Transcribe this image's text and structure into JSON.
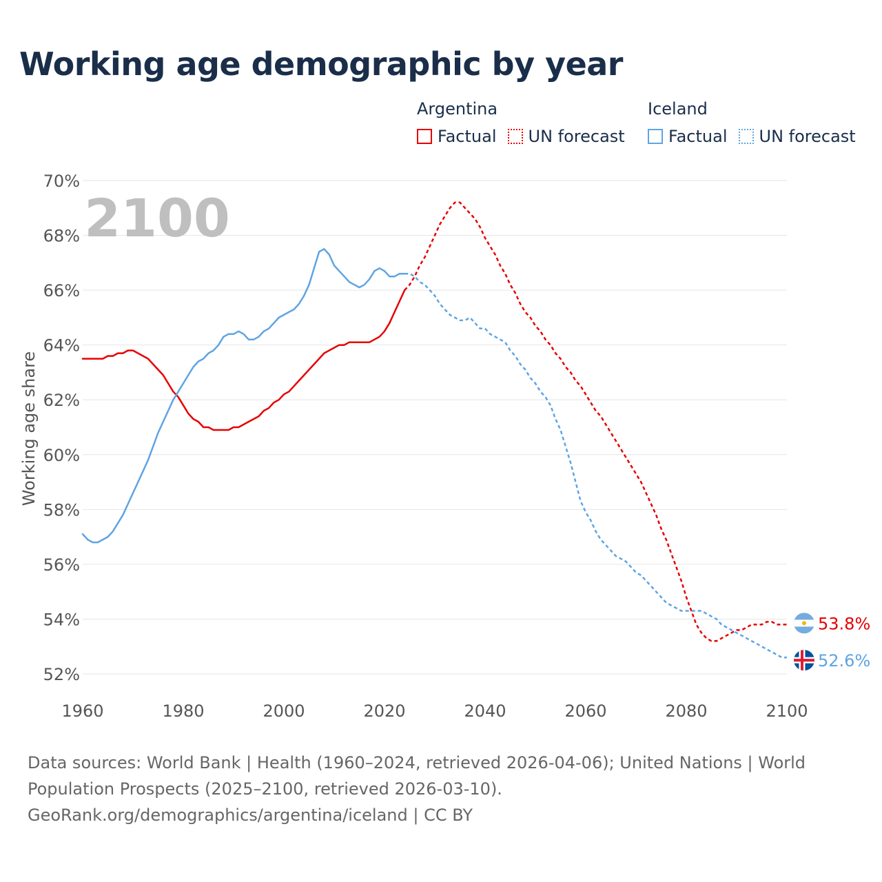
{
  "title": "Working age demographic by year",
  "legend": [
    {
      "country": "Argentina",
      "factual_label": "Factual",
      "forecast_label": "UN forecast",
      "color": "#e60000"
    },
    {
      "country": "Iceland",
      "factual_label": "Factual",
      "forecast_label": "UN forecast",
      "color": "#5ea4e2"
    }
  ],
  "footer": {
    "line1": "Data sources: World Bank | Health (1960–2024, retrieved 2026-04-06); United Nations | World",
    "line2": "Population Prospects (2025–2100, retrieved 2026-03-10).",
    "line3": "GeoRank.org/demographics/argentina/iceland | CC BY"
  },
  "colors": {
    "title": "#1a2e4a",
    "axis_text": "#555555",
    "grid": "#e6e6e6",
    "year_watermark": "#bfbfbf",
    "argentina": "#e60000",
    "iceland": "#5ea4e2"
  },
  "chart_data": {
    "type": "line",
    "title": "Working age demographic by year",
    "ylabel": "Working age share",
    "xlabel": "",
    "year_label": "2100",
    "xlim": [
      1960,
      2100
    ],
    "ylim": [
      52,
      70
    ],
    "x_ticks": [
      "1960",
      "1980",
      "2000",
      "2020",
      "2040",
      "2060",
      "2080",
      "2100"
    ],
    "y_ticks": [
      "52%",
      "54%",
      "56%",
      "58%",
      "60%",
      "62%",
      "64%",
      "66%",
      "68%",
      "70%"
    ],
    "factual_end_year": 2024,
    "series": [
      {
        "name": "Argentina",
        "flag": "argentina-flag",
        "end_label": "53.8%",
        "points": [
          [
            1960,
            63.5
          ],
          [
            1962,
            63.5
          ],
          [
            1964,
            63.5
          ],
          [
            1965,
            63.6
          ],
          [
            1966,
            63.6
          ],
          [
            1967,
            63.7
          ],
          [
            1968,
            63.7
          ],
          [
            1969,
            63.8
          ],
          [
            1970,
            63.8
          ],
          [
            1972,
            63.6
          ],
          [
            1973,
            63.5
          ],
          [
            1975,
            63.1
          ],
          [
            1976,
            62.9
          ],
          [
            1977,
            62.6
          ],
          [
            1978,
            62.3
          ],
          [
            1979,
            62.1
          ],
          [
            1980,
            61.8
          ],
          [
            1981,
            61.5
          ],
          [
            1982,
            61.3
          ],
          [
            1983,
            61.2
          ],
          [
            1984,
            61.0
          ],
          [
            1985,
            61.0
          ],
          [
            1986,
            60.9
          ],
          [
            1988,
            60.9
          ],
          [
            1989,
            60.9
          ],
          [
            1990,
            61.0
          ],
          [
            1991,
            61.0
          ],
          [
            1993,
            61.2
          ],
          [
            1995,
            61.4
          ],
          [
            1996,
            61.6
          ],
          [
            1997,
            61.7
          ],
          [
            1998,
            61.9
          ],
          [
            1999,
            62.0
          ],
          [
            2000,
            62.2
          ],
          [
            2001,
            62.3
          ],
          [
            2003,
            62.7
          ],
          [
            2005,
            63.1
          ],
          [
            2007,
            63.5
          ],
          [
            2008,
            63.7
          ],
          [
            2010,
            63.9
          ],
          [
            2011,
            64.0
          ],
          [
            2012,
            64.0
          ],
          [
            2013,
            64.1
          ],
          [
            2015,
            64.1
          ],
          [
            2017,
            64.1
          ],
          [
            2018,
            64.2
          ],
          [
            2019,
            64.3
          ],
          [
            2020,
            64.5
          ],
          [
            2021,
            64.8
          ],
          [
            2022,
            65.2
          ],
          [
            2023,
            65.6
          ],
          [
            2024,
            66.0
          ],
          [
            2025,
            66.2
          ],
          [
            2026,
            66.5
          ],
          [
            2027,
            66.9
          ],
          [
            2028,
            67.2
          ],
          [
            2029,
            67.6
          ],
          [
            2030,
            68.0
          ],
          [
            2031,
            68.4
          ],
          [
            2032,
            68.7
          ],
          [
            2033,
            69.0
          ],
          [
            2034,
            69.2
          ],
          [
            2035,
            69.2
          ],
          [
            2036,
            69.0
          ],
          [
            2037,
            68.8
          ],
          [
            2038,
            68.6
          ],
          [
            2039,
            68.3
          ],
          [
            2040,
            67.9
          ],
          [
            2041,
            67.6
          ],
          [
            2042,
            67.3
          ],
          [
            2043,
            66.9
          ],
          [
            2044,
            66.6
          ],
          [
            2045,
            66.2
          ],
          [
            2046,
            65.9
          ],
          [
            2047,
            65.5
          ],
          [
            2048,
            65.2
          ],
          [
            2049,
            65.0
          ],
          [
            2050,
            64.7
          ],
          [
            2051,
            64.5
          ],
          [
            2052,
            64.2
          ],
          [
            2053,
            64.0
          ],
          [
            2054,
            63.7
          ],
          [
            2055,
            63.5
          ],
          [
            2056,
            63.2
          ],
          [
            2057,
            63.0
          ],
          [
            2058,
            62.7
          ],
          [
            2059,
            62.5
          ],
          [
            2060,
            62.2
          ],
          [
            2061,
            61.9
          ],
          [
            2062,
            61.6
          ],
          [
            2063,
            61.4
          ],
          [
            2064,
            61.1
          ],
          [
            2065,
            60.8
          ],
          [
            2066,
            60.5
          ],
          [
            2067,
            60.2
          ],
          [
            2068,
            59.9
          ],
          [
            2069,
            59.6
          ],
          [
            2070,
            59.3
          ],
          [
            2071,
            59.0
          ],
          [
            2072,
            58.6
          ],
          [
            2073,
            58.2
          ],
          [
            2074,
            57.8
          ],
          [
            2075,
            57.3
          ],
          [
            2076,
            56.9
          ],
          [
            2077,
            56.4
          ],
          [
            2078,
            55.9
          ],
          [
            2079,
            55.4
          ],
          [
            2080,
            54.8
          ],
          [
            2081,
            54.3
          ],
          [
            2082,
            53.8
          ],
          [
            2083,
            53.5
          ],
          [
            2084,
            53.3
          ],
          [
            2085,
            53.2
          ],
          [
            2086,
            53.2
          ],
          [
            2087,
            53.3
          ],
          [
            2088,
            53.4
          ],
          [
            2089,
            53.5
          ],
          [
            2090,
            53.6
          ],
          [
            2091,
            53.6
          ],
          [
            2092,
            53.7
          ],
          [
            2093,
            53.8
          ],
          [
            2094,
            53.8
          ],
          [
            2095,
            53.8
          ],
          [
            2096,
            53.9
          ],
          [
            2097,
            53.9
          ],
          [
            2098,
            53.8
          ],
          [
            2099,
            53.8
          ],
          [
            2100,
            53.8
          ]
        ]
      },
      {
        "name": "Iceland",
        "flag": "iceland-flag",
        "end_label": "52.6%",
        "points": [
          [
            1960,
            57.1
          ],
          [
            1961,
            56.9
          ],
          [
            1962,
            56.8
          ],
          [
            1963,
            56.8
          ],
          [
            1964,
            56.9
          ],
          [
            1965,
            57.0
          ],
          [
            1966,
            57.2
          ],
          [
            1967,
            57.5
          ],
          [
            1968,
            57.8
          ],
          [
            1969,
            58.2
          ],
          [
            1970,
            58.6
          ],
          [
            1971,
            59.0
          ],
          [
            1972,
            59.4
          ],
          [
            1973,
            59.8
          ],
          [
            1974,
            60.3
          ],
          [
            1975,
            60.8
          ],
          [
            1976,
            61.2
          ],
          [
            1977,
            61.6
          ],
          [
            1978,
            62.0
          ],
          [
            1979,
            62.3
          ],
          [
            1980,
            62.6
          ],
          [
            1981,
            62.9
          ],
          [
            1982,
            63.2
          ],
          [
            1983,
            63.4
          ],
          [
            1984,
            63.5
          ],
          [
            1985,
            63.7
          ],
          [
            1986,
            63.8
          ],
          [
            1987,
            64.0
          ],
          [
            1988,
            64.3
          ],
          [
            1989,
            64.4
          ],
          [
            1990,
            64.4
          ],
          [
            1991,
            64.5
          ],
          [
            1992,
            64.4
          ],
          [
            1993,
            64.2
          ],
          [
            1994,
            64.2
          ],
          [
            1995,
            64.3
          ],
          [
            1996,
            64.5
          ],
          [
            1997,
            64.6
          ],
          [
            1998,
            64.8
          ],
          [
            1999,
            65.0
          ],
          [
            2000,
            65.1
          ],
          [
            2001,
            65.2
          ],
          [
            2002,
            65.3
          ],
          [
            2003,
            65.5
          ],
          [
            2004,
            65.8
          ],
          [
            2005,
            66.2
          ],
          [
            2006,
            66.8
          ],
          [
            2007,
            67.4
          ],
          [
            2008,
            67.5
          ],
          [
            2009,
            67.3
          ],
          [
            2010,
            66.9
          ],
          [
            2011,
            66.7
          ],
          [
            2012,
            66.5
          ],
          [
            2013,
            66.3
          ],
          [
            2014,
            66.2
          ],
          [
            2015,
            66.1
          ],
          [
            2016,
            66.2
          ],
          [
            2017,
            66.4
          ],
          [
            2018,
            66.7
          ],
          [
            2019,
            66.8
          ],
          [
            2020,
            66.7
          ],
          [
            2021,
            66.5
          ],
          [
            2022,
            66.5
          ],
          [
            2023,
            66.6
          ],
          [
            2024,
            66.6
          ],
          [
            2025,
            66.6
          ],
          [
            2026,
            66.5
          ],
          [
            2027,
            66.3
          ],
          [
            2028,
            66.2
          ],
          [
            2029,
            66.0
          ],
          [
            2030,
            65.8
          ],
          [
            2031,
            65.5
          ],
          [
            2032,
            65.3
          ],
          [
            2033,
            65.1
          ],
          [
            2034,
            65.0
          ],
          [
            2035,
            64.9
          ],
          [
            2036,
            64.9
          ],
          [
            2037,
            65.0
          ],
          [
            2038,
            64.8
          ],
          [
            2039,
            64.6
          ],
          [
            2040,
            64.6
          ],
          [
            2041,
            64.4
          ],
          [
            2042,
            64.3
          ],
          [
            2043,
            64.2
          ],
          [
            2044,
            64.1
          ],
          [
            2045,
            63.8
          ],
          [
            2046,
            63.6
          ],
          [
            2047,
            63.3
          ],
          [
            2048,
            63.1
          ],
          [
            2049,
            62.8
          ],
          [
            2050,
            62.6
          ],
          [
            2051,
            62.3
          ],
          [
            2052,
            62.1
          ],
          [
            2053,
            61.8
          ],
          [
            2054,
            61.3
          ],
          [
            2055,
            60.9
          ],
          [
            2056,
            60.3
          ],
          [
            2057,
            59.7
          ],
          [
            2058,
            59.0
          ],
          [
            2059,
            58.3
          ],
          [
            2060,
            57.9
          ],
          [
            2061,
            57.6
          ],
          [
            2062,
            57.2
          ],
          [
            2063,
            56.9
          ],
          [
            2064,
            56.7
          ],
          [
            2065,
            56.5
          ],
          [
            2066,
            56.3
          ],
          [
            2067,
            56.2
          ],
          [
            2068,
            56.1
          ],
          [
            2069,
            55.9
          ],
          [
            2070,
            55.7
          ],
          [
            2071,
            55.6
          ],
          [
            2072,
            55.4
          ],
          [
            2073,
            55.2
          ],
          [
            2074,
            55.0
          ],
          [
            2075,
            54.8
          ],
          [
            2076,
            54.6
          ],
          [
            2077,
            54.5
          ],
          [
            2078,
            54.4
          ],
          [
            2079,
            54.3
          ],
          [
            2080,
            54.3
          ],
          [
            2081,
            54.3
          ],
          [
            2082,
            54.3
          ],
          [
            2083,
            54.3
          ],
          [
            2084,
            54.2
          ],
          [
            2085,
            54.1
          ],
          [
            2086,
            54.0
          ],
          [
            2087,
            53.8
          ],
          [
            2088,
            53.7
          ],
          [
            2089,
            53.6
          ],
          [
            2090,
            53.5
          ],
          [
            2091,
            53.4
          ],
          [
            2092,
            53.3
          ],
          [
            2093,
            53.2
          ],
          [
            2094,
            53.1
          ],
          [
            2095,
            53.0
          ],
          [
            2096,
            52.9
          ],
          [
            2097,
            52.8
          ],
          [
            2098,
            52.7
          ],
          [
            2099,
            52.6
          ],
          [
            2100,
            52.6
          ]
        ]
      }
    ]
  }
}
